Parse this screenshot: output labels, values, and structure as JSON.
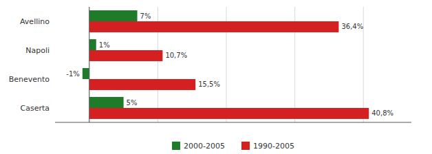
{
  "chart_data": {
    "type": "bar",
    "orientation": "horizontal",
    "categories": [
      "Avellino",
      "Napoli",
      "Benevento",
      "Caserta"
    ],
    "series": [
      {
        "name": "2000-2005",
        "color": "#1e7b2a",
        "values": [
          7,
          1,
          -1,
          5
        ],
        "value_labels": [
          "7%",
          "1%",
          "-1%",
          "5%"
        ]
      },
      {
        "name": "1990-2005",
        "color": "#d42020",
        "values": [
          36.4,
          10.7,
          15.5,
          40.8
        ],
        "value_labels": [
          "36,4%",
          "10,7%",
          "15,5%",
          "40,8%"
        ]
      }
    ],
    "xlim": [
      -5,
      47
    ],
    "xticks": [
      0,
      10,
      20,
      30,
      40
    ],
    "grid": true,
    "data_labels": true,
    "tick_labels": "y",
    "legend": "bottom"
  }
}
